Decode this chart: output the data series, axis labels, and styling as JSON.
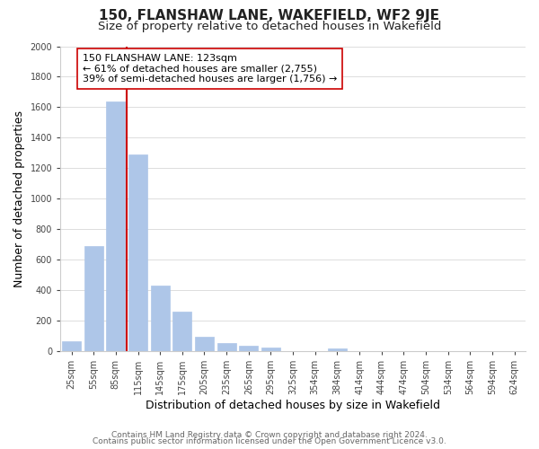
{
  "title": "150, FLANSHAW LANE, WAKEFIELD, WF2 9JE",
  "subtitle": "Size of property relative to detached houses in Wakefield",
  "xlabel": "Distribution of detached houses by size in Wakefield",
  "ylabel": "Number of detached properties",
  "bar_labels": [
    "25sqm",
    "55sqm",
    "85sqm",
    "115sqm",
    "145sqm",
    "175sqm",
    "205sqm",
    "235sqm",
    "265sqm",
    "295sqm",
    "325sqm",
    "354sqm",
    "384sqm",
    "414sqm",
    "444sqm",
    "474sqm",
    "504sqm",
    "534sqm",
    "564sqm",
    "594sqm",
    "624sqm"
  ],
  "bar_values": [
    65,
    690,
    1640,
    1290,
    430,
    255,
    90,
    50,
    30,
    20,
    0,
    0,
    15,
    0,
    0,
    0,
    0,
    0,
    0,
    0,
    0
  ],
  "bar_color": "#aec6e8",
  "bar_edge_color": "#aec6e8",
  "vline_x_index": 2.5,
  "vline_color": "#cc0000",
  "annotation_text": "150 FLANSHAW LANE: 123sqm\n← 61% of detached houses are smaller (2,755)\n39% of semi-detached houses are larger (1,756) →",
  "annotation_box_color": "white",
  "annotation_box_edge": "#cc0000",
  "ylim": [
    0,
    2000
  ],
  "yticks": [
    0,
    200,
    400,
    600,
    800,
    1000,
    1200,
    1400,
    1600,
    1800,
    2000
  ],
  "footer_line1": "Contains HM Land Registry data © Crown copyright and database right 2024.",
  "footer_line2": "Contains public sector information licensed under the Open Government Licence v3.0.",
  "background_color": "#ffffff",
  "grid_color": "#dddddd",
  "title_fontsize": 11,
  "subtitle_fontsize": 9.5,
  "axis_label_fontsize": 9,
  "tick_fontsize": 7,
  "annotation_fontsize": 8,
  "footer_fontsize": 6.5
}
